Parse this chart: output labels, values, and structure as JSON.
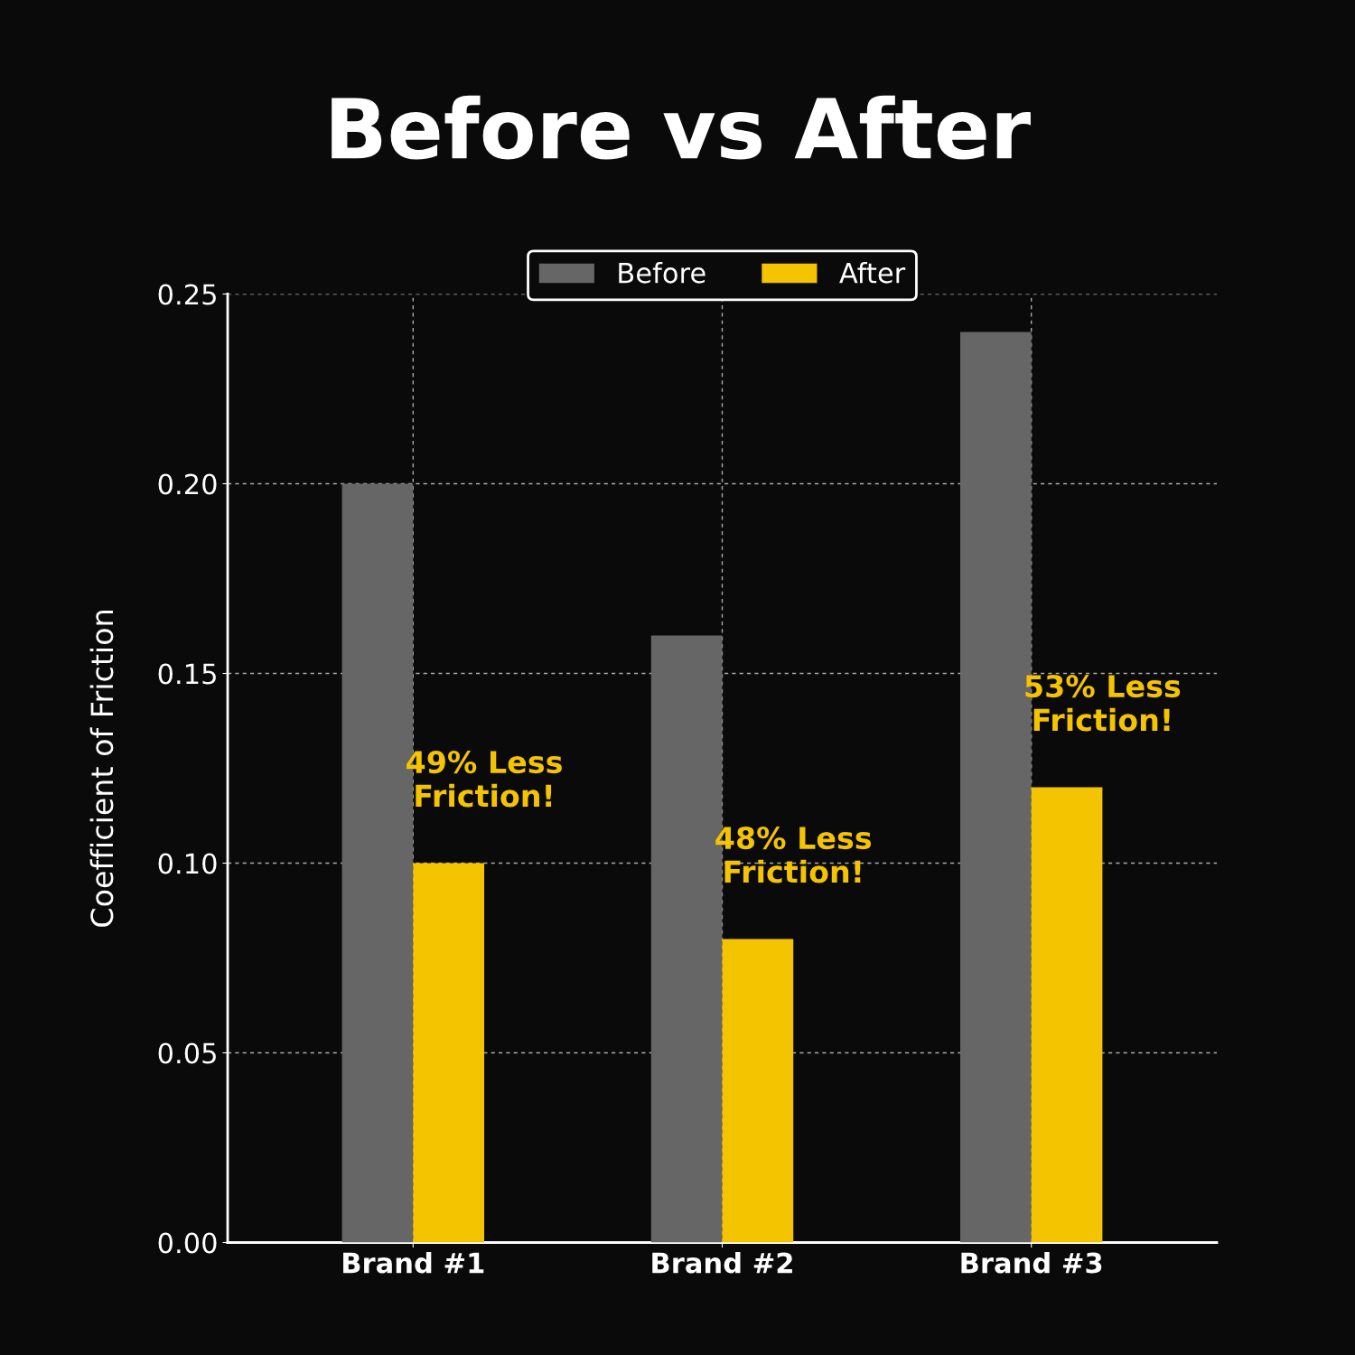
{
  "chart_data": {
    "type": "bar",
    "title": "Before vs After",
    "ylabel": "Coefficient of Friction",
    "categories": [
      "Brand #1",
      "Brand #2",
      "Brand #3"
    ],
    "series": [
      {
        "name": "Before",
        "color": "#666666",
        "values": [
          0.2,
          0.16,
          0.24
        ]
      },
      {
        "name": "After",
        "color": "#f5c400",
        "values": [
          0.1,
          0.08,
          0.12
        ]
      }
    ],
    "ylim": [
      0,
      0.25
    ],
    "yticks": [
      {
        "value": 0,
        "label": "0.00"
      },
      {
        "value": 0.05,
        "label": "0.05"
      },
      {
        "value": 0.1,
        "label": "0.10"
      },
      {
        "value": 0.15,
        "label": "0.15"
      },
      {
        "value": 0.2,
        "label": "0.20"
      },
      {
        "value": 0.25,
        "label": "0.25"
      }
    ],
    "grid": true,
    "legend": "top",
    "annotations": [
      {
        "text": "49% Less\nFriction!",
        "x": "Brand #1",
        "y": 0.1
      },
      {
        "text": "48% Less\nFriction!",
        "x": "Brand #2",
        "y": 0.08
      },
      {
        "text": "53% Less\nFriction!",
        "x": "Brand #3",
        "y": 0.12
      }
    ]
  }
}
